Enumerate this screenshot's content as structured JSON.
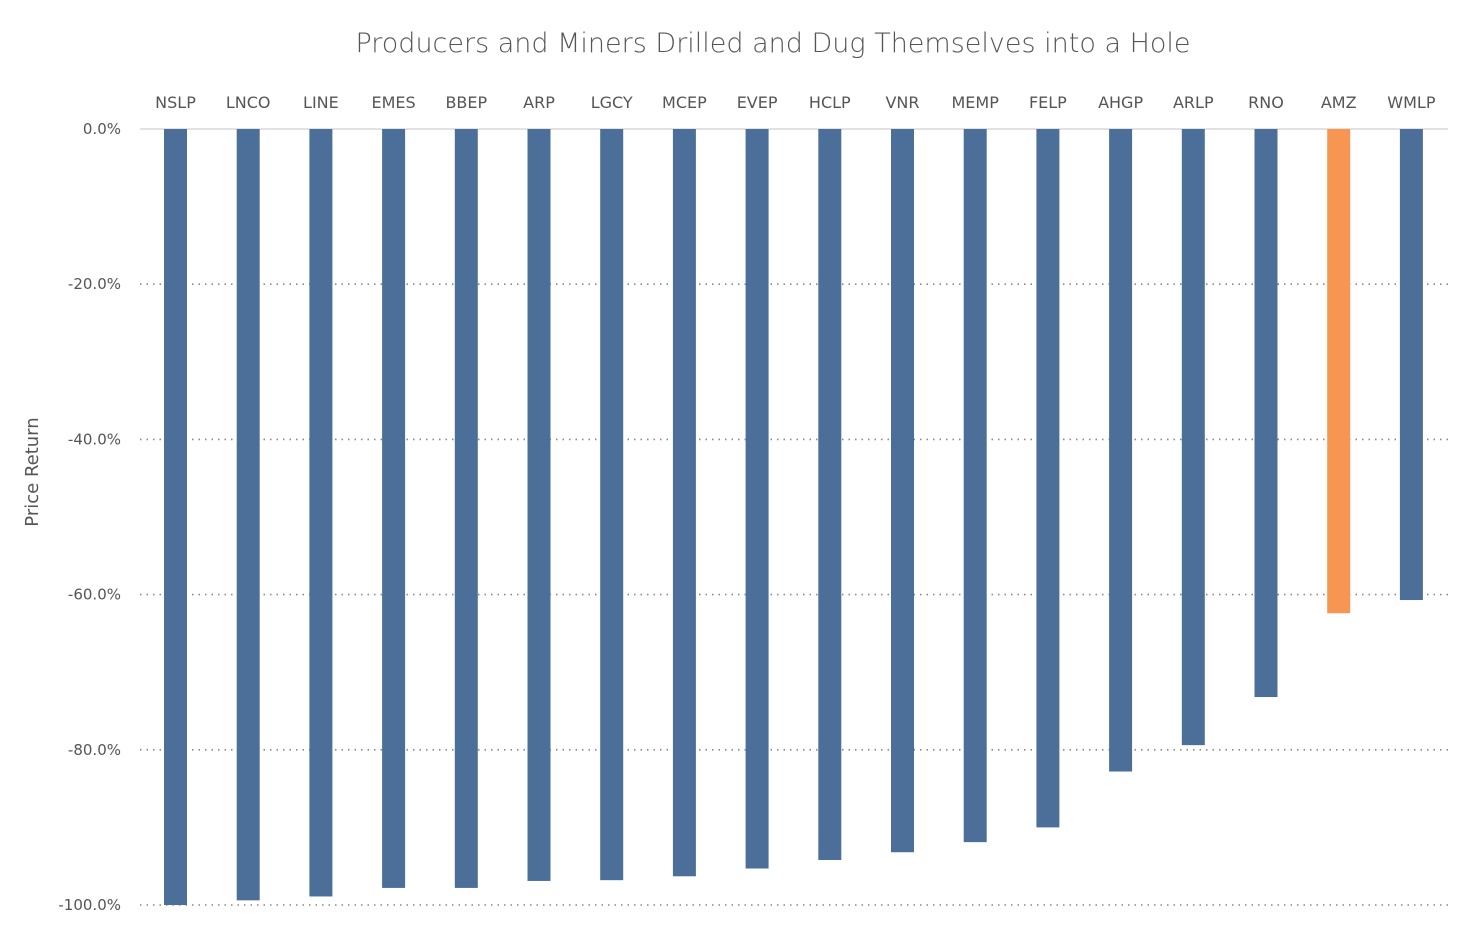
{
  "chart_data": {
    "type": "bar",
    "title": "Producers and Miners Drilled and Dug Themselves into a Hole",
    "xlabel": "",
    "ylabel": "Price Return",
    "categories": [
      "NSLP",
      "LNCO",
      "LINE",
      "EMES",
      "BBEP",
      "ARP",
      "LGCY",
      "MCEP",
      "EVEP",
      "HCLP",
      "VNR",
      "MEMP",
      "FELP",
      "AHGP",
      "ARLP",
      "RNO",
      "AMZ",
      "WMLP"
    ],
    "values": [
      -100.0,
      -99.4,
      -98.9,
      -97.8,
      -97.8,
      -96.9,
      -96.8,
      -96.3,
      -95.3,
      -94.2,
      -93.2,
      -91.9,
      -90.0,
      -82.8,
      -79.4,
      -73.2,
      -62.4,
      -60.7
    ],
    "highlight_category": "AMZ",
    "colors": {
      "default": "#4c6f99",
      "highlight": "#f79552"
    },
    "ylim": [
      -100,
      0
    ],
    "yticks": [
      0,
      -20,
      -40,
      -60,
      -80,
      -100
    ],
    "ytick_labels": [
      "0.0%",
      "-20.0%",
      "-40.0%",
      "-60.0%",
      "-80.0%",
      "-100.0%"
    ],
    "grid": "dotted horizontal",
    "category_labels_position": "top"
  }
}
